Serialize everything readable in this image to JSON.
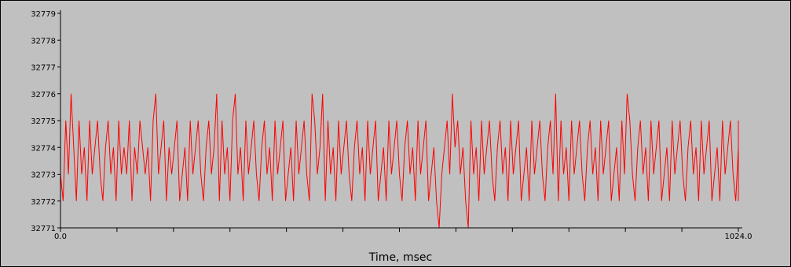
{
  "chart_data": {
    "type": "line",
    "title": "",
    "xlabel": "Time, msec",
    "ylabel": "",
    "xlim": [
      0,
      1024
    ],
    "ylim": [
      32771,
      32779
    ],
    "x_tick_labels": [
      "0.0",
      "1024.0"
    ],
    "y_ticks": [
      32771,
      32772,
      32773,
      32774,
      32775,
      32776,
      32777,
      32778,
      32779
    ],
    "y_tick_labels": [
      "32771",
      "32772",
      "32773",
      "32774",
      "32775",
      "32776",
      "32777",
      "32778",
      "32779"
    ],
    "grid": false,
    "legend": "none",
    "series": [
      {
        "name": "",
        "color": "#ff0000",
        "x_start": 0,
        "x_step": 4,
        "values": [
          32773,
          32772,
          32775,
          32773,
          32776,
          32774,
          32772,
          32775,
          32773,
          32774,
          32772,
          32775,
          32773,
          32774,
          32775,
          32773,
          32772,
          32774,
          32775,
          32773,
          32774,
          32772,
          32775,
          32773,
          32774,
          32773,
          32775,
          32772,
          32774,
          32773,
          32775,
          32774,
          32773,
          32774,
          32772,
          32775,
          32776,
          32773,
          32774,
          32775,
          32772,
          32774,
          32773,
          32774,
          32775,
          32772,
          32773,
          32774,
          32772,
          32775,
          32773,
          32774,
          32775,
          32773,
          32772,
          32774,
          32775,
          32773,
          32774,
          32776,
          32772,
          32775,
          32773,
          32774,
          32772,
          32775,
          32776,
          32773,
          32774,
          32772,
          32775,
          32773,
          32774,
          32775,
          32773,
          32772,
          32774,
          32775,
          32773,
          32774,
          32772,
          32775,
          32773,
          32774,
          32775,
          32772,
          32773,
          32774,
          32772,
          32775,
          32773,
          32774,
          32775,
          32773,
          32772,
          32776,
          32775,
          32773,
          32774,
          32776,
          32772,
          32775,
          32773,
          32774,
          32772,
          32775,
          32773,
          32774,
          32775,
          32773,
          32772,
          32774,
          32775,
          32773,
          32774,
          32772,
          32775,
          32773,
          32774,
          32775,
          32772,
          32773,
          32774,
          32772,
          32775,
          32773,
          32774,
          32775,
          32773,
          32772,
          32774,
          32775,
          32773,
          32774,
          32772,
          32775,
          32773,
          32774,
          32775,
          32772,
          32773,
          32774,
          32772,
          32771,
          32773,
          32774,
          32775,
          32773,
          32776,
          32774,
          32775,
          32773,
          32774,
          32772,
          32771,
          32775,
          32773,
          32774,
          32772,
          32775,
          32773,
          32774,
          32775,
          32773,
          32772,
          32774,
          32775,
          32773,
          32774,
          32772,
          32775,
          32773,
          32774,
          32775,
          32772,
          32773,
          32774,
          32772,
          32775,
          32773,
          32774,
          32775,
          32773,
          32772,
          32774,
          32775,
          32773,
          32776,
          32772,
          32775,
          32773,
          32774,
          32772,
          32775,
          32773,
          32774,
          32775,
          32773,
          32772,
          32774,
          32775,
          32773,
          32774,
          32772,
          32775,
          32773,
          32774,
          32775,
          32772,
          32773,
          32774,
          32772,
          32775,
          32773,
          32776,
          32775,
          32773,
          32772,
          32774,
          32775,
          32773,
          32774,
          32772,
          32775,
          32773,
          32774,
          32775,
          32772,
          32773,
          32774,
          32772,
          32775,
          32773,
          32774,
          32775,
          32773,
          32772,
          32774,
          32775,
          32773,
          32774,
          32772,
          32775,
          32773,
          32774,
          32775,
          32772,
          32773,
          32774,
          32772,
          32775,
          32773,
          32774,
          32775,
          32773,
          32772,
          32774,
          32775,
          32773,
          32774,
          32772,
          32775
        ]
      }
    ]
  }
}
